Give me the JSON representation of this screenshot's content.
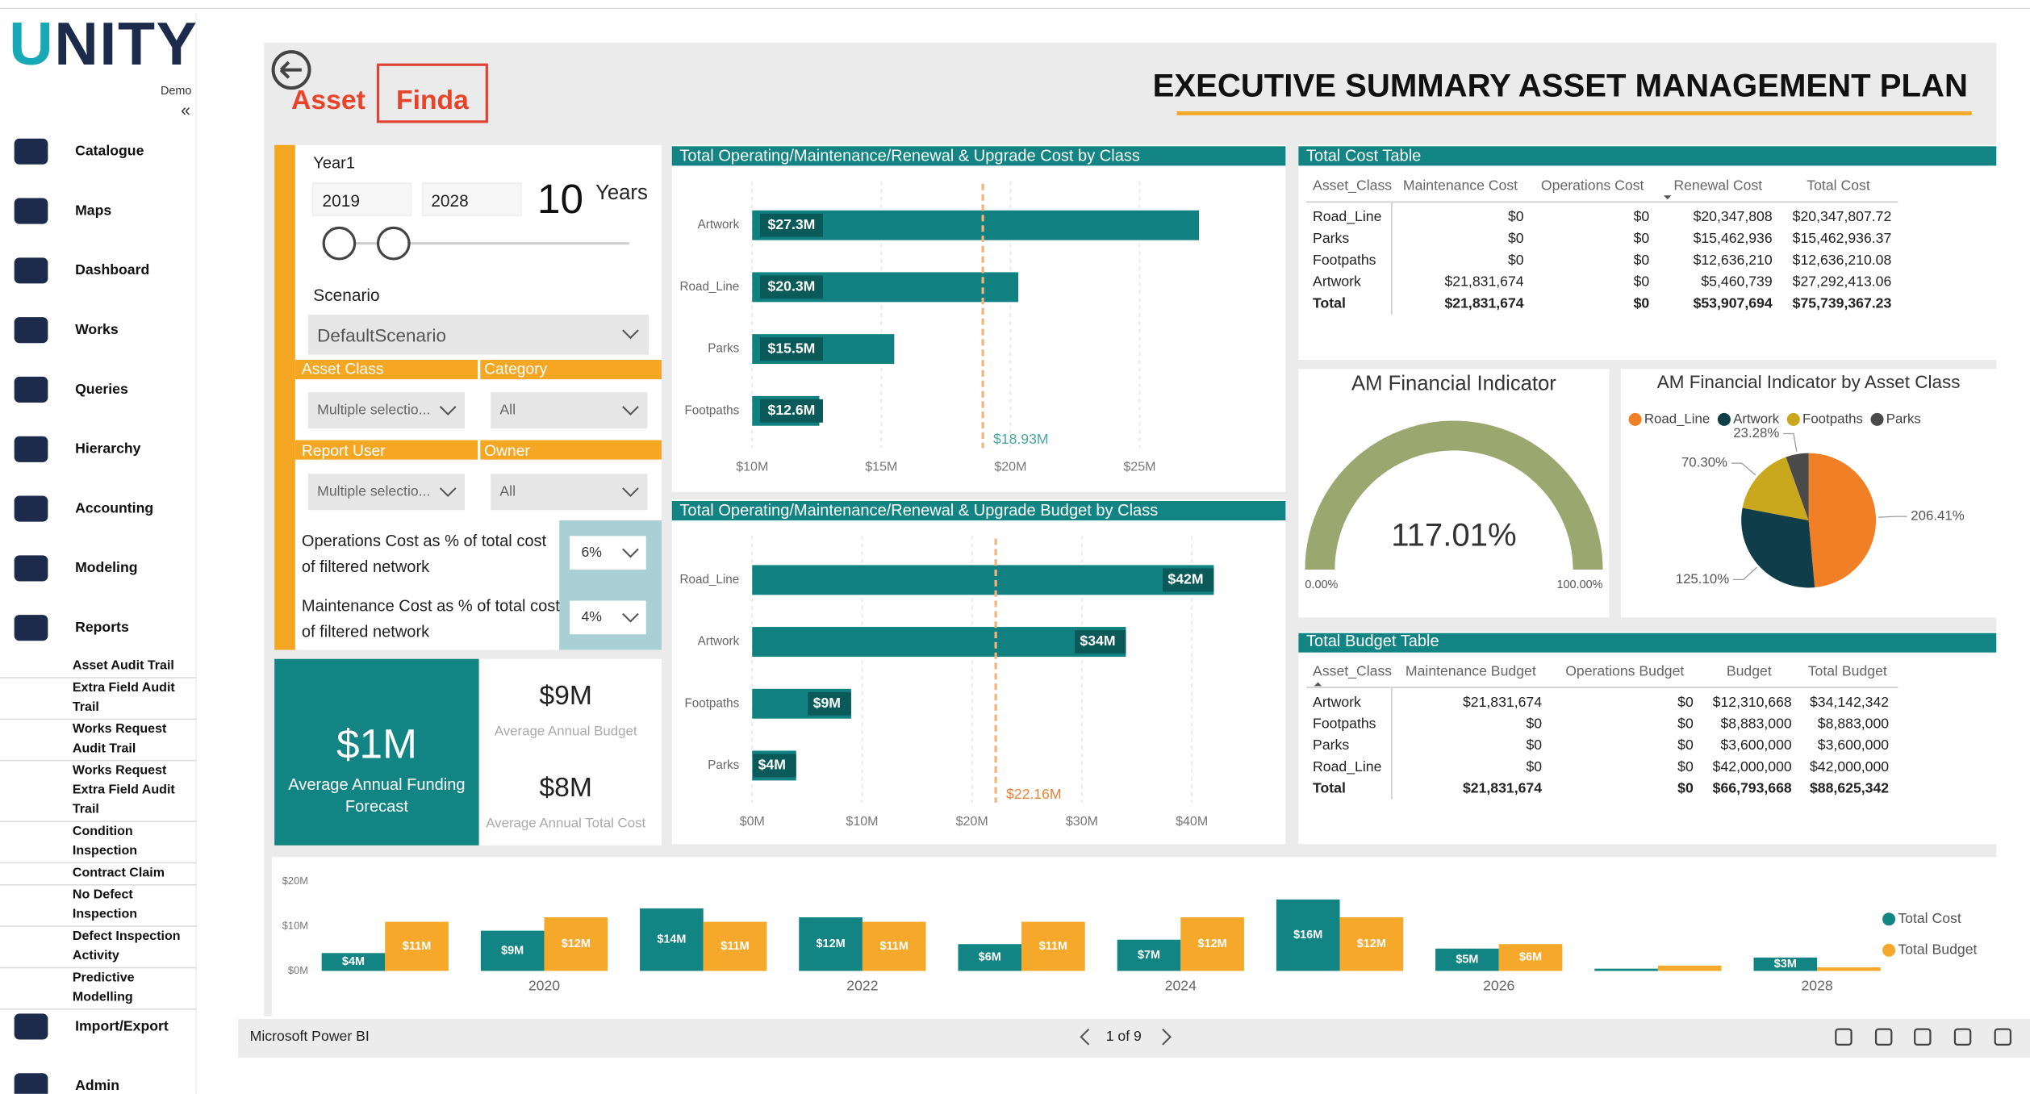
{
  "sidebar": {
    "logo": "UNITY",
    "tenant": "Demo",
    "collapse": "«",
    "menu": [
      "Catalogue",
      "Maps",
      "Dashboard",
      "Works",
      "Queries",
      "Hierarchy",
      "Accounting",
      "Modeling",
      "Reports"
    ],
    "reports": [
      "Asset Audit Trail",
      "Extra Field Audit Trail",
      "Works Request Audit Trail",
      "Works Request Extra Field Audit Trail",
      "Condition Inspection",
      "Contract Claim",
      "No Defect Inspection",
      "Defect Inspection Activity",
      "Predictive Modelling"
    ],
    "menu_bottom": [
      "Import/Export",
      "Admin"
    ]
  },
  "header": {
    "logo_left": "Asset",
    "logo_right": "Finda",
    "title": "EXECUTIVE SUMMARY ASSET MANAGEMENT PLAN"
  },
  "filters": {
    "year_label": "Year1",
    "start": "2019",
    "end": "2028",
    "duration": "10",
    "duration_unit": "Years",
    "scenario_label": "Scenario",
    "scenario": "DefaultScenario",
    "slicers": [
      {
        "label": "Asset Class",
        "value": "Multiple selectio..."
      },
      {
        "label": "Category",
        "value": "All"
      },
      {
        "label": "Report User",
        "value": "Multiple selectio..."
      },
      {
        "label": "Owner",
        "value": "All"
      }
    ],
    "parameters": [
      {
        "label": "Operations Cost as % of total cost of filtered network",
        "value": "6%"
      },
      {
        "label": "Maintenance Cost as % of total cost of filtered network",
        "value": "4%"
      }
    ]
  },
  "cards": {
    "funding": {
      "value": "$1M",
      "label": "Average Annual Funding Forecast"
    },
    "budget": {
      "value": "$9M",
      "label": "Average Annual Budget"
    },
    "total_cost": {
      "value": "$8M",
      "label": "Average Annual Total Cost"
    }
  },
  "chart_data": [
    {
      "type": "bar",
      "orientation": "horizontal",
      "title": "Total Operating/Maintenance/Renewal & Upgrade Cost by Class",
      "categories": [
        "Artwork",
        "Road_Line",
        "Parks",
        "Footpaths"
      ],
      "values": [
        27.3,
        20.3,
        15.5,
        12.6
      ],
      "value_labels": [
        "$27.3M",
        "$20.3M",
        "$15.5M",
        "$12.6M"
      ],
      "color": "#118080",
      "xlim": [
        10,
        30
      ],
      "xticks": [
        {
          "value": 10,
          "label": "$10M"
        },
        {
          "value": 15,
          "label": "$15M"
        },
        {
          "value": 20,
          "label": "$20M"
        },
        {
          "value": 25,
          "label": "$25M"
        }
      ],
      "grid": true,
      "reference_line": {
        "value": 18.93,
        "label": "$18.93M",
        "color": "#f5b27a",
        "label_color": "#4aa6a6"
      }
    },
    {
      "type": "bar",
      "orientation": "horizontal",
      "title": "Total Operating/Maintenance/Renewal & Upgrade Budget by Class",
      "categories": [
        "Road_Line",
        "Artwork",
        "Footpaths",
        "Parks"
      ],
      "values": [
        42,
        34,
        9,
        4
      ],
      "value_labels": [
        "$42M",
        "$34M",
        "$9M",
        "$4M"
      ],
      "color": "#118080",
      "xlim": [
        0,
        47
      ],
      "xticks": [
        {
          "value": 0,
          "label": "$0M"
        },
        {
          "value": 10,
          "label": "$10M"
        },
        {
          "value": 20,
          "label": "$20M"
        },
        {
          "value": 30,
          "label": "$30M"
        },
        {
          "value": 40,
          "label": "$40M"
        }
      ],
      "grid": true,
      "reference_line": {
        "value": 22.16,
        "label": "$22.16M",
        "color": "#f5b27a",
        "label_color": "#e8823a"
      }
    },
    {
      "type": "gauge",
      "title": "AM Financial Indicator",
      "value": 117.01,
      "value_label": "117.01%",
      "ylim": [
        0,
        100
      ],
      "yticks": [
        {
          "value": 0,
          "label": "0.00%"
        },
        {
          "value": 100,
          "label": "100.00%"
        }
      ],
      "color": "#9aa870",
      "track_color": "#e6e6e6"
    },
    {
      "type": "pie",
      "title": "AM Financial Indicator by Asset Class",
      "categories": [
        "Road_Line",
        "Artwork",
        "Footpaths",
        "Parks"
      ],
      "values": [
        206.41,
        125.1,
        70.3,
        23.28
      ],
      "value_labels": [
        "206.41%",
        "125.10%",
        "70.30%",
        "23.28%"
      ],
      "colors": [
        "#f07f26",
        "#0f3e4a",
        "#c9a81e",
        "#4a4a4a"
      ],
      "legend": "top"
    },
    {
      "type": "bar",
      "categories": [
        null,
        "2020",
        null,
        "2022",
        null,
        "2024",
        null,
        "2026",
        null,
        "2028"
      ],
      "series": [
        {
          "name": "Total Cost",
          "color": "#138484",
          "values": [
            4,
            9,
            14,
            12,
            6,
            7,
            16,
            5,
            0.5,
            3
          ],
          "value_labels": [
            "$4M",
            "$9M",
            "$14M",
            "$12M",
            "$6M",
            "$7M",
            "$16M",
            "$5M",
            null,
            "$3M"
          ]
        },
        {
          "name": "Total Budget",
          "color": "#f5a82a",
          "values": [
            11,
            12,
            11,
            11,
            11,
            12,
            12,
            6,
            1.2,
            0.8
          ],
          "value_labels": [
            "$11M",
            "$12M",
            "$11M",
            "$11M",
            "$11M",
            "$12M",
            "$12M",
            "$6M",
            null,
            null
          ]
        }
      ],
      "ylim": [
        0,
        20
      ],
      "yticks": [
        {
          "value": 0,
          "label": "$0M"
        },
        {
          "value": 10,
          "label": "$10M"
        },
        {
          "value": 20,
          "label": "$20M"
        }
      ],
      "legend": "right"
    }
  ],
  "tables": [
    {
      "title": "Total Cost Table",
      "columns": [
        "Asset_Class",
        "Maintenance Cost",
        "Operations Cost",
        "Renewal Cost",
        "Total Cost"
      ],
      "rows": [
        [
          "Road_Line",
          "$0",
          "$0",
          "$20,347,808",
          "$20,347,807.72"
        ],
        [
          "Parks",
          "$0",
          "$0",
          "$15,462,936",
          "$15,462,936.37"
        ],
        [
          "Footpaths",
          "$0",
          "$0",
          "$12,636,210",
          "$12,636,210.08"
        ],
        [
          "Artwork",
          "$21,831,674",
          "$0",
          "$5,460,739",
          "$27,292,413.06"
        ],
        [
          "Total",
          "$21,831,674",
          "$0",
          "$53,907,694",
          "$75,739,367.23"
        ]
      ]
    },
    {
      "title": "Total Budget Table",
      "columns": [
        "Asset_Class",
        "Maintenance Budget",
        "Operations Budget",
        "Budget",
        "Total Budget"
      ],
      "rows": [
        [
          "Artwork",
          "$21,831,674",
          "$0",
          "$12,310,668",
          "$34,142,342"
        ],
        [
          "Footpaths",
          "$0",
          "$0",
          "$8,883,000",
          "$8,883,000"
        ],
        [
          "Parks",
          "$0",
          "$0",
          "$3,600,000",
          "$3,600,000"
        ],
        [
          "Road_Line",
          "$0",
          "$0",
          "$42,000,000",
          "$42,000,000"
        ],
        [
          "Total",
          "$21,831,674",
          "$0",
          "$66,793,668",
          "$88,625,342"
        ]
      ]
    }
  ],
  "footer": {
    "brand": "Microsoft Power BI",
    "page": "1 of 9"
  }
}
